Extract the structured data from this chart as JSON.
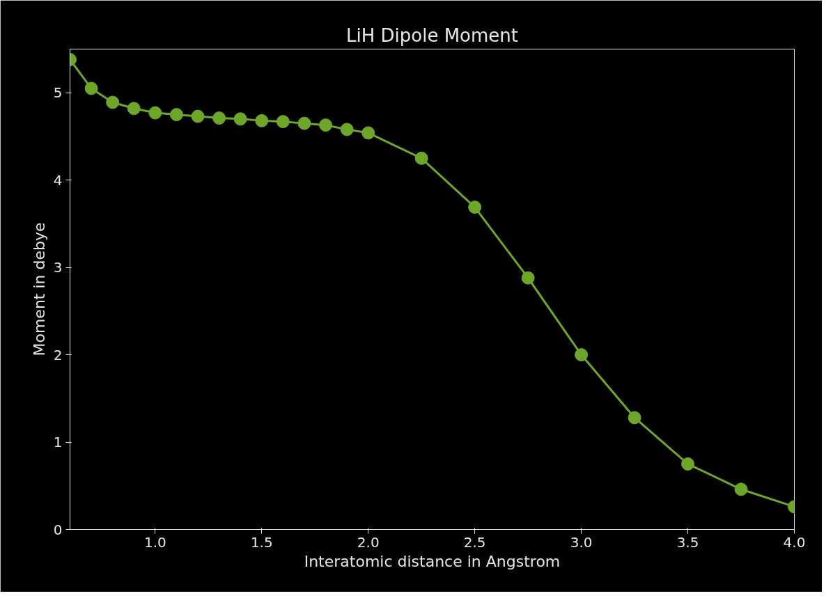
{
  "chart_data": {
    "type": "line",
    "title": "LiH Dipole Moment",
    "xlabel": "Interatomic distance in Angstrom",
    "ylabel": "Moment in debye",
    "x": [
      0.6,
      0.7,
      0.8,
      0.9,
      1.0,
      1.1,
      1.2,
      1.3,
      1.4,
      1.5,
      1.6,
      1.7,
      1.8,
      1.9,
      2.0,
      2.25,
      2.5,
      2.75,
      3.0,
      3.25,
      3.5,
      3.75,
      4.0
    ],
    "series": [
      {
        "color": "#6ea62a",
        "values": [
          5.38,
          5.05,
          4.89,
          4.82,
          4.77,
          4.75,
          4.73,
          4.71,
          4.7,
          4.68,
          4.67,
          4.65,
          4.63,
          4.58,
          4.54,
          4.25,
          3.69,
          2.88,
          2.0,
          1.28,
          0.75,
          0.46,
          0.26
        ]
      }
    ],
    "xlim": [
      0.6,
      4.0
    ],
    "xticks": [
      {
        "value": 1,
        "label": "1.0"
      },
      1.5,
      {
        "value": 2,
        "label": "2.0"
      },
      2.5,
      {
        "value": 3,
        "label": "3.0"
      },
      3.5,
      {
        "value": 4,
        "label": "4.0"
      }
    ],
    "ylim": [
      0,
      5.5
    ],
    "yticks": [
      0,
      1,
      2,
      3,
      4,
      5
    ],
    "grid": false,
    "marker": "circle",
    "line_style": "solid"
  }
}
